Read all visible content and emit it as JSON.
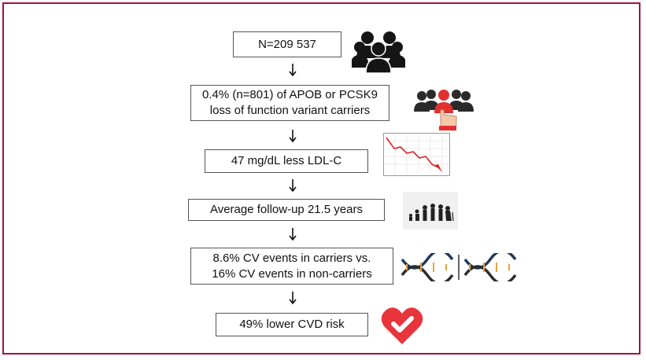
{
  "flow": {
    "steps": [
      {
        "text": "N=209 537"
      },
      {
        "text": "0.4% (n=801) of APOB or PCSK9\nloss of function variant carriers"
      },
      {
        "text": "47 mg/dL less LDL-C"
      },
      {
        "text": "Average follow-up 21.5 years"
      },
      {
        "text": "8.6% CV events in carriers vs.\n16% CV events in non-carriers"
      },
      {
        "text": "49% lower CVD risk"
      }
    ]
  },
  "icons": {
    "population": "people-group-icon",
    "carriers": "selected-person-icon",
    "ldl": "declining-chart-icon",
    "followup": "aging-people-icon",
    "events": "dna-icon",
    "risk": "heart-check-icon"
  },
  "colors": {
    "border": "#a1123f",
    "heart": "#e8353c",
    "chart_line": "#e02020"
  }
}
